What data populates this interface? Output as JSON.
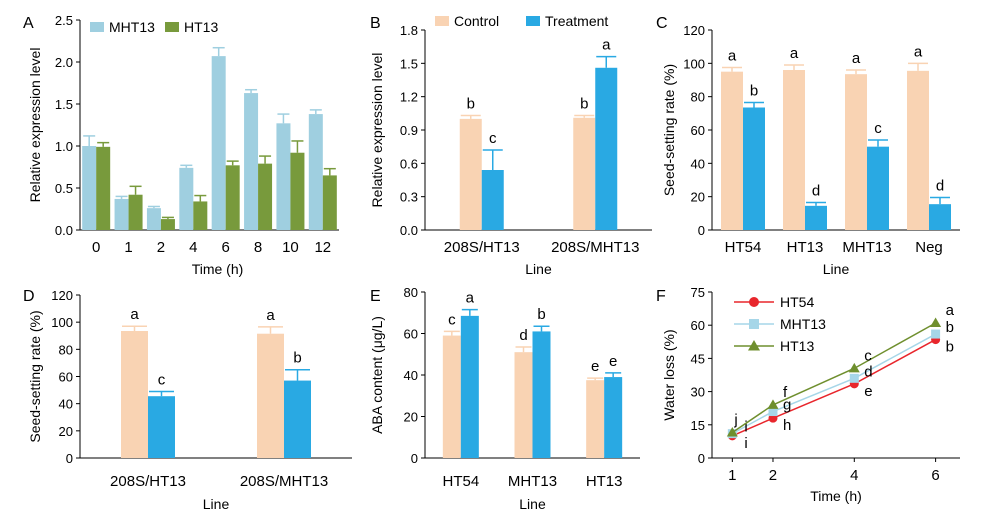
{
  "chart_data": [
    {
      "panel_letter": "A",
      "type": "bar",
      "xlabel": "Time (h)",
      "ylabel": "Relative expression level",
      "categories": [
        "0",
        "1",
        "2",
        "4",
        "6",
        "8",
        "10",
        "12"
      ],
      "ylim": [
        0,
        2.5
      ],
      "yticks": [
        "0.0",
        "0.5",
        "1.0",
        "1.5",
        "2.0",
        "2.5"
      ],
      "legend_position": "top-left",
      "series": [
        {
          "name": "MHT13",
          "color": "#9fcfe0",
          "values": [
            1.0,
            0.37,
            0.26,
            0.74,
            2.07,
            1.63,
            1.27,
            1.38
          ],
          "errors": [
            0.12,
            0.03,
            0.02,
            0.03,
            0.1,
            0.04,
            0.11,
            0.05
          ]
        },
        {
          "name": "HT13",
          "color": "#789a3c",
          "values": [
            0.99,
            0.42,
            0.13,
            0.34,
            0.77,
            0.79,
            0.92,
            0.65
          ],
          "errors": [
            0.05,
            0.1,
            0.02,
            0.07,
            0.05,
            0.09,
            0.14,
            0.08
          ]
        }
      ]
    },
    {
      "panel_letter": "B",
      "type": "bar",
      "xlabel": "Line",
      "ylabel": "Relative expression level",
      "categories": [
        "208S/HT13",
        "208S/MHT13"
      ],
      "ylim": [
        0,
        1.8
      ],
      "yticks": [
        "0.0",
        "0.3",
        "0.6",
        "0.9",
        "1.2",
        "1.5",
        "1.8"
      ],
      "legend_position": "top",
      "series": [
        {
          "name": "Control",
          "color": "#f9d3b3",
          "values": [
            1.0,
            1.01
          ],
          "errors": [
            0.03,
            0.02
          ],
          "letters": [
            "b",
            "b"
          ]
        },
        {
          "name": "Treatment",
          "color": "#29a9e3",
          "values": [
            0.54,
            1.46
          ],
          "errors": [
            0.18,
            0.1
          ],
          "letters": [
            "c",
            "a"
          ]
        }
      ]
    },
    {
      "panel_letter": "C",
      "type": "bar",
      "xlabel": "Line",
      "ylabel": "Seed-setting rate (%)",
      "categories": [
        "HT54",
        "HT13",
        "MHT13",
        "Neg"
      ],
      "ylim": [
        0,
        120
      ],
      "yticks": [
        "0",
        "20",
        "40",
        "60",
        "80",
        "100",
        "120"
      ],
      "series": [
        {
          "color": "#f9d3b3",
          "values": [
            95,
            96,
            93.5,
            95.5
          ],
          "errors": [
            2.5,
            3,
            2.5,
            4.5
          ],
          "letters": [
            "a",
            "a",
            "a",
            "a"
          ]
        },
        {
          "color": "#29a9e3",
          "values": [
            73.5,
            14.5,
            50,
            15.5
          ],
          "errors": [
            3,
            2,
            4,
            4
          ],
          "letters": [
            "b",
            "d",
            "c",
            "d"
          ]
        }
      ]
    },
    {
      "panel_letter": "D",
      "type": "bar",
      "xlabel": "Line",
      "ylabel": "Seed-setting rate (%)",
      "categories": [
        "208S/HT13",
        "208S/MHT13"
      ],
      "ylim": [
        0,
        120
      ],
      "yticks": [
        "0",
        "20",
        "40",
        "60",
        "80",
        "100",
        "120"
      ],
      "series": [
        {
          "color": "#f9d3b3",
          "values": [
            93.5,
            91.5
          ],
          "errors": [
            3.5,
            5
          ],
          "letters": [
            "a",
            "a"
          ]
        },
        {
          "color": "#29a9e3",
          "values": [
            45.5,
            57
          ],
          "errors": [
            3.5,
            8
          ],
          "letters": [
            "c",
            "b"
          ]
        }
      ]
    },
    {
      "panel_letter": "E",
      "type": "bar",
      "xlabel": "Line",
      "ylabel": "ABA content (μg/L)",
      "categories": [
        "HT54",
        "MHT13",
        "HT13"
      ],
      "ylim": [
        0,
        80
      ],
      "yticks": [
        "0",
        "20",
        "40",
        "60",
        "80"
      ],
      "series": [
        {
          "color": "#f9d3b3",
          "values": [
            59,
            51,
            37.5
          ],
          "errors": [
            2,
            2.5,
            1
          ],
          "letters": [
            "c",
            "d",
            "e"
          ]
        },
        {
          "color": "#29a9e3",
          "values": [
            68.5,
            61,
            39
          ],
          "errors": [
            3,
            2.5,
            2
          ],
          "letters": [
            "a",
            "b",
            "e"
          ]
        }
      ]
    },
    {
      "panel_letter": "F",
      "type": "line",
      "xlabel": "Time (h)",
      "ylabel": "Water loss (%)",
      "x": [
        1,
        2,
        4,
        6
      ],
      "xlim": [
        0.5,
        6.6
      ],
      "ylim": [
        0,
        75
      ],
      "yticks": [
        "0",
        "15",
        "30",
        "45",
        "60",
        "75"
      ],
      "xticks": [
        "1",
        "2",
        "4",
        "6"
      ],
      "legend_position": "top-left",
      "series": [
        {
          "name": "HT54",
          "color": "#e8262c",
          "marker": "circle",
          "values": [
            10,
            18,
            33.5,
            53.5
          ],
          "letters": [
            "i",
            "h",
            "e",
            "b"
          ]
        },
        {
          "name": "MHT13",
          "color": "#a6d6e8",
          "marker": "square",
          "values": [
            11,
            21,
            36,
            56
          ],
          "letters": [
            "i",
            "g",
            "d",
            "b"
          ]
        },
        {
          "name": "HT13",
          "color": "#6f8f2e",
          "marker": "triangle",
          "values": [
            11.5,
            24,
            40.5,
            61
          ],
          "letters": [
            "j",
            "f",
            "c",
            "a"
          ]
        }
      ]
    }
  ]
}
